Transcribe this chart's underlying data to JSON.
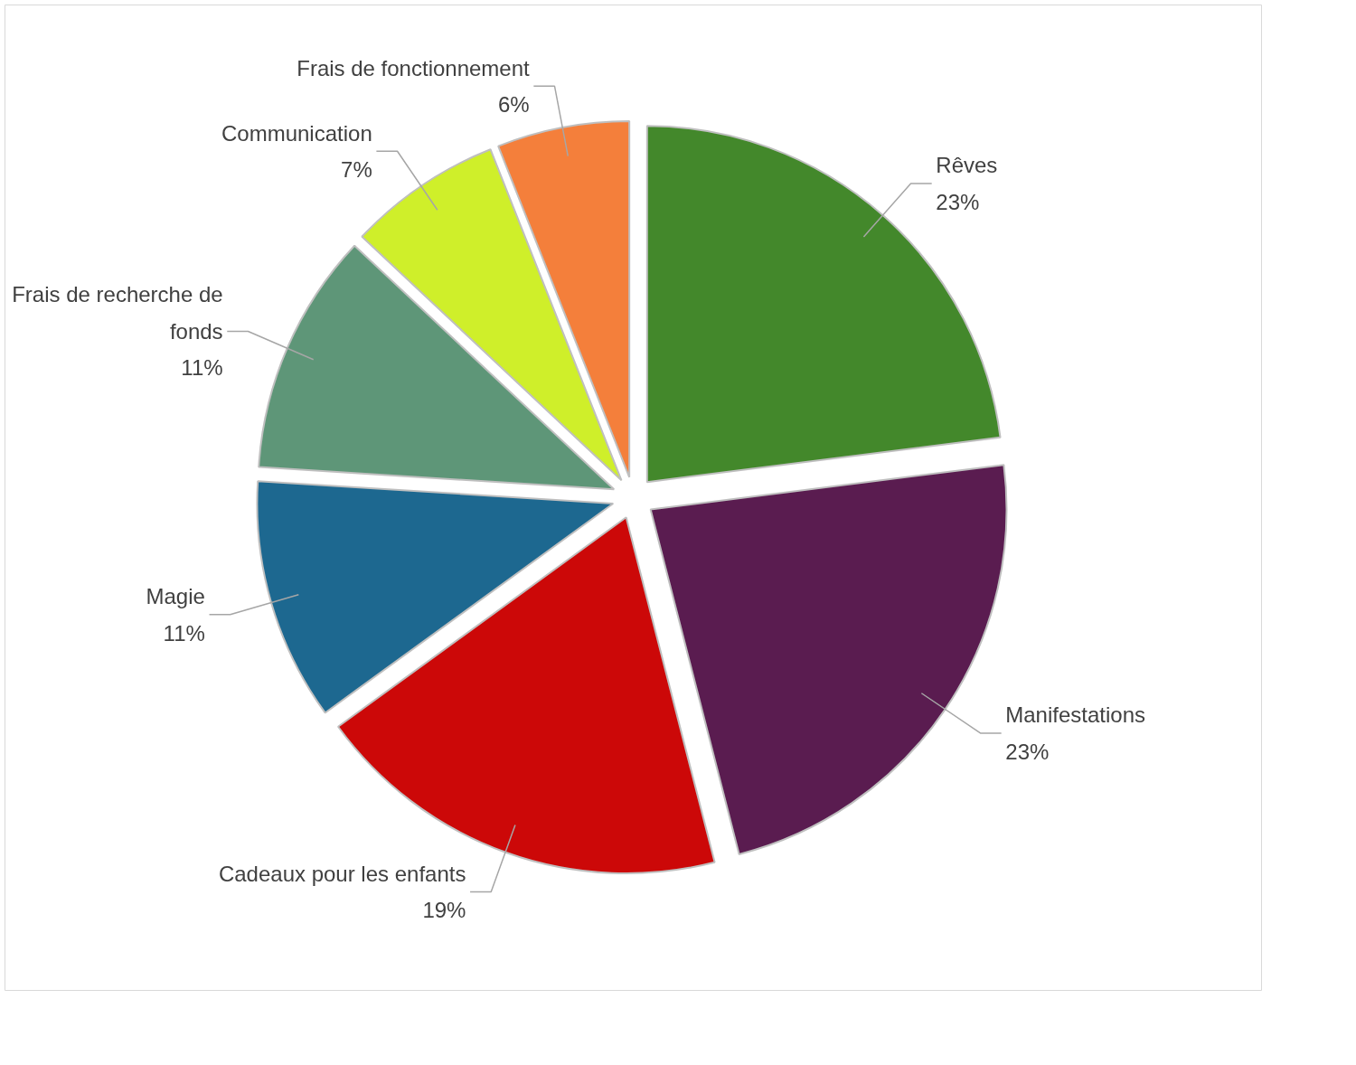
{
  "chart_data": {
    "type": "pie",
    "categories": [
      "Rêves",
      "Manifestations",
      "Cadeaux pour les enfants",
      "Magie",
      "Frais de recherche de fonds",
      "Communication",
      "Frais de fonctionnement"
    ],
    "values": [
      23,
      23,
      19,
      11,
      11,
      7,
      6
    ],
    "value_labels": [
      "23%",
      "23%",
      "19%",
      "11%",
      "11%",
      "7%",
      "6%"
    ],
    "colors": [
      "#43882b",
      "#5a1c50",
      "#cc0808",
      "#1d6890",
      "#5e9678",
      "#cfef2a",
      "#f47f3b"
    ],
    "legend": false
  }
}
